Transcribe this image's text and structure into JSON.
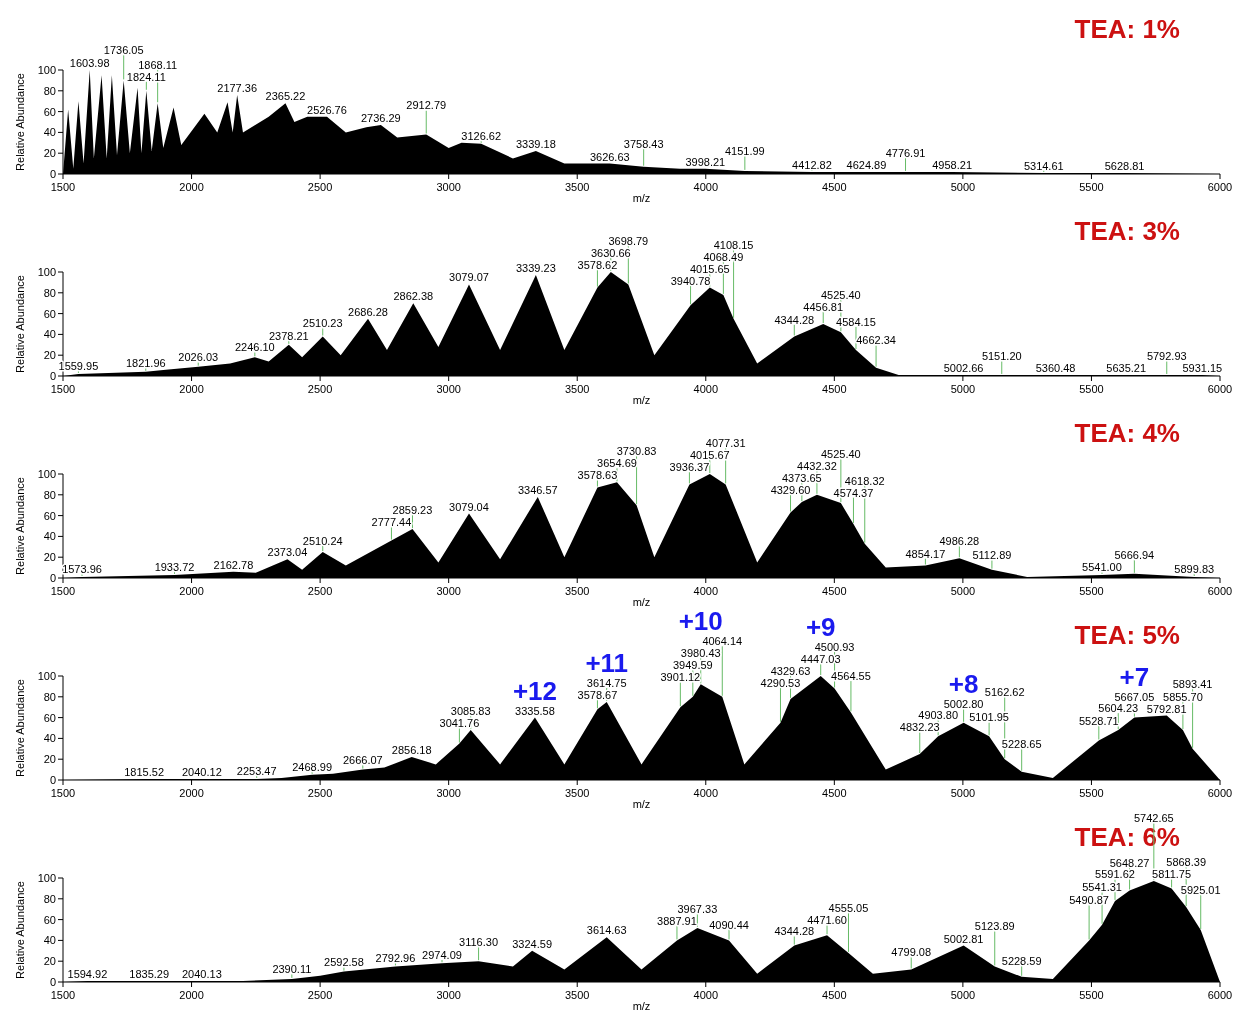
{
  "chart_data": [
    {
      "type": "area",
      "title": "TEA: 1%",
      "xlabel": "m/z",
      "ylabel": "Relative Abundance",
      "color": "#000000",
      "xlim": [
        1500,
        6000
      ],
      "xticks": [
        1500,
        2000,
        2500,
        3000,
        3500,
        4000,
        4500,
        5000,
        5500,
        6000
      ],
      "ylim": [
        0,
        100
      ],
      "yticks": [
        0,
        20,
        40,
        60,
        80,
        100
      ],
      "x": [
        1500,
        1520,
        1540,
        1560,
        1580,
        1603.98,
        1620,
        1650,
        1670,
        1690,
        1710,
        1736.05,
        1760,
        1790,
        1805,
        1824.11,
        1845,
        1868.11,
        1890,
        1930,
        1960,
        2050,
        2100,
        2140,
        2160,
        2177.36,
        2200,
        2300,
        2365.22,
        2400,
        2450,
        2526.76,
        2600,
        2680,
        2736.29,
        2800,
        2912.79,
        3000,
        3050,
        3126.62,
        3250,
        3339.18,
        3450,
        3626.63,
        3758.43,
        3900,
        3998.21,
        4151.99,
        4412.82,
        4624.89,
        4776.91,
        4958.21,
        5314.61,
        5628.81,
        6000
      ],
      "values": [
        0,
        62,
        5,
        70,
        10,
        100,
        15,
        95,
        15,
        95,
        18,
        90,
        20,
        83,
        20,
        80,
        22,
        68,
        25,
        64,
        28,
        58,
        40,
        69,
        40,
        76,
        40,
        55,
        68,
        50,
        55,
        55,
        40,
        45,
        47,
        35,
        38,
        25,
        30,
        29,
        15,
        22,
        10,
        10,
        7,
        5,
        5,
        3,
        2,
        2,
        2,
        2,
        1,
        1,
        0
      ],
      "annotations": [
        {
          "text": "1603.98",
          "x": 1603.98,
          "y": 100
        },
        {
          "text": "1736.05",
          "x": 1736.05,
          "y": 90
        },
        {
          "text": "1824.11",
          "x": 1824.11,
          "y": 80
        },
        {
          "text": "1868.11",
          "x": 1868.11,
          "y": 68
        },
        {
          "text": "2177.36",
          "x": 2177.36,
          "y": 76
        },
        {
          "text": "2365.22",
          "x": 2365.22,
          "y": 68
        },
        {
          "text": "2526.76",
          "x": 2526.76,
          "y": 55
        },
        {
          "text": "2736.29",
          "x": 2736.29,
          "y": 47
        },
        {
          "text": "2912.79",
          "x": 2912.79,
          "y": 38
        },
        {
          "text": "3126.62",
          "x": 3126.62,
          "y": 29
        },
        {
          "text": "3339.18",
          "x": 3339.18,
          "y": 22
        },
        {
          "text": "3626.63",
          "x": 3626.63,
          "y": 10
        },
        {
          "text": "3758.43",
          "x": 3758.43,
          "y": 7
        },
        {
          "text": "3998.21",
          "x": 3998.21,
          "y": 5
        },
        {
          "text": "4151.99",
          "x": 4151.99,
          "y": 3
        },
        {
          "text": "4412.82",
          "x": 4412.82,
          "y": 2
        },
        {
          "text": "4624.89",
          "x": 4624.89,
          "y": 2
        },
        {
          "text": "4776.91",
          "x": 4776.91,
          "y": 2
        },
        {
          "text": "4958.21",
          "x": 4958.21,
          "y": 2
        },
        {
          "text": "5314.61",
          "x": 5314.61,
          "y": 1
        },
        {
          "text": "5628.81",
          "x": 5628.81,
          "y": 1
        }
      ]
    },
    {
      "type": "area",
      "title": "TEA: 3%",
      "xlabel": "m/z",
      "ylabel": "Relative Abundance",
      "color": "#000000",
      "xlim": [
        1500,
        6000
      ],
      "xticks": [
        1500,
        2000,
        2500,
        3000,
        3500,
        4000,
        4500,
        5000,
        5500,
        6000
      ],
      "ylim": [
        0,
        100
      ],
      "yticks": [
        0,
        20,
        40,
        60,
        80,
        100
      ],
      "x": [
        1500,
        1559.95,
        1821.96,
        1900,
        2026.03,
        2150,
        2246.1,
        2300,
        2378.21,
        2430,
        2510.23,
        2580,
        2686.28,
        2760,
        2862.38,
        2960,
        3079.07,
        3200,
        3339.23,
        3450,
        3578.62,
        3630.66,
        3698.79,
        3800,
        3940.78,
        4015.65,
        4068.49,
        4108.15,
        4200,
        4344.28,
        4456.81,
        4525.4,
        4584.15,
        4662.34,
        4750,
        5002.66,
        5151.2,
        5360.48,
        5635.21,
        5792.93,
        5931.15,
        6000
      ],
      "values": [
        0,
        2,
        4,
        6,
        9,
        12,
        18,
        14,
        30,
        18,
        38,
        20,
        55,
        25,
        70,
        28,
        88,
        25,
        97,
        25,
        85,
        100,
        88,
        20,
        68,
        85,
        78,
        55,
        12,
        38,
        50,
        42,
        25,
        8,
        1,
        1,
        1,
        1,
        1,
        1,
        1,
        0
      ],
      "annotations": [
        {
          "text": "1559.95",
          "x": 1559.95,
          "y": 2
        },
        {
          "text": "1821.96",
          "x": 1821.96,
          "y": 4
        },
        {
          "text": "2026.03",
          "x": 2026.03,
          "y": 9
        },
        {
          "text": "2246.10",
          "x": 2246.1,
          "y": 18
        },
        {
          "text": "2378.21",
          "x": 2378.21,
          "y": 30
        },
        {
          "text": "2510.23",
          "x": 2510.23,
          "y": 38
        },
        {
          "text": "2686.28",
          "x": 2686.28,
          "y": 55
        },
        {
          "text": "2862.38",
          "x": 2862.38,
          "y": 70
        },
        {
          "text": "3079.07",
          "x": 3079.07,
          "y": 88
        },
        {
          "text": "3339.23",
          "x": 3339.23,
          "y": 97
        },
        {
          "text": "3578.62",
          "x": 3578.62,
          "y": 85
        },
        {
          "text": "3630.66",
          "x": 3630.66,
          "y": 100
        },
        {
          "text": "3698.79",
          "x": 3698.79,
          "y": 88
        },
        {
          "text": "3940.78",
          "x": 3940.78,
          "y": 68
        },
        {
          "text": "4015.65",
          "x": 4015.65,
          "y": 85
        },
        {
          "text": "4068.49",
          "x": 4068.49,
          "y": 78
        },
        {
          "text": "4108.15",
          "x": 4108.15,
          "y": 55
        },
        {
          "text": "4344.28",
          "x": 4344.28,
          "y": 38
        },
        {
          "text": "4456.81",
          "x": 4456.81,
          "y": 50
        },
        {
          "text": "4525.40",
          "x": 4525.4,
          "y": 42
        },
        {
          "text": "4584.15",
          "x": 4584.15,
          "y": 25
        },
        {
          "text": "4662.34",
          "x": 4662.34,
          "y": 8
        },
        {
          "text": "5002.66",
          "x": 5002.66,
          "y": 1
        },
        {
          "text": "5151.20",
          "x": 5151.2,
          "y": 1
        },
        {
          "text": "5360.48",
          "x": 5360.48,
          "y": 1
        },
        {
          "text": "5635.21",
          "x": 5635.21,
          "y": 1
        },
        {
          "text": "5792.93",
          "x": 5792.93,
          "y": 1
        },
        {
          "text": "5931.15",
          "x": 5931.15,
          "y": 1
        }
      ]
    },
    {
      "type": "area",
      "title": "TEA: 4%",
      "xlabel": "m/z",
      "ylabel": "Relative Abundance",
      "color": "#000000",
      "xlim": [
        1500,
        6000
      ],
      "xticks": [
        1500,
        2000,
        2500,
        3000,
        3500,
        4000,
        4500,
        5000,
        5500,
        6000
      ],
      "ylim": [
        0,
        100
      ],
      "yticks": [
        0,
        20,
        40,
        60,
        80,
        100
      ],
      "x": [
        1500,
        1573.96,
        1933.72,
        2162.78,
        2250,
        2373.04,
        2430,
        2510.24,
        2600,
        2777.44,
        2859.23,
        2960,
        3079.04,
        3200,
        3346.57,
        3450,
        3578.63,
        3654.69,
        3730.83,
        3800,
        3936.37,
        4015.67,
        4077.31,
        4200,
        4329.6,
        4373.65,
        4432.32,
        4525.4,
        4574.37,
        4618.32,
        4700,
        4854.17,
        4986.28,
        5112.89,
        5250,
        5541.0,
        5666.94,
        5899.83,
        6000
      ],
      "values": [
        0,
        1,
        3,
        6,
        5,
        18,
        8,
        25,
        12,
        36,
        47,
        15,
        62,
        18,
        78,
        20,
        87,
        92,
        70,
        20,
        90,
        100,
        90,
        15,
        63,
        73,
        80,
        72,
        52,
        33,
        10,
        12,
        19,
        8,
        1,
        3,
        4,
        1,
        0
      ],
      "annotations": [
        {
          "text": "1573.96",
          "x": 1573.96,
          "y": 1
        },
        {
          "text": "1933.72",
          "x": 1933.72,
          "y": 3
        },
        {
          "text": "2162.78",
          "x": 2162.78,
          "y": 6
        },
        {
          "text": "2373.04",
          "x": 2373.04,
          "y": 18
        },
        {
          "text": "2510.24",
          "x": 2510.24,
          "y": 25
        },
        {
          "text": "2777.44",
          "x": 2777.44,
          "y": 36
        },
        {
          "text": "2859.23",
          "x": 2859.23,
          "y": 47
        },
        {
          "text": "3079.04",
          "x": 3079.04,
          "y": 62
        },
        {
          "text": "3346.57",
          "x": 3346.57,
          "y": 78
        },
        {
          "text": "3578.63",
          "x": 3578.63,
          "y": 87
        },
        {
          "text": "3654.69",
          "x": 3654.69,
          "y": 92
        },
        {
          "text": "3730.83",
          "x": 3730.83,
          "y": 70
        },
        {
          "text": "3936.37",
          "x": 3936.37,
          "y": 90
        },
        {
          "text": "4015.67",
          "x": 4015.67,
          "y": 100
        },
        {
          "text": "4077.31",
          "x": 4077.31,
          "y": 90
        },
        {
          "text": "4329.60",
          "x": 4329.6,
          "y": 63
        },
        {
          "text": "4373.65",
          "x": 4373.65,
          "y": 73
        },
        {
          "text": "4432.32",
          "x": 4432.32,
          "y": 80
        },
        {
          "text": "4525.40",
          "x": 4525.4,
          "y": 72
        },
        {
          "text": "4574.37",
          "x": 4574.37,
          "y": 52
        },
        {
          "text": "4618.32",
          "x": 4618.32,
          "y": 33
        },
        {
          "text": "4854.17",
          "x": 4854.17,
          "y": 12
        },
        {
          "text": "4986.28",
          "x": 4986.28,
          "y": 19
        },
        {
          "text": "5112.89",
          "x": 5112.89,
          "y": 8
        },
        {
          "text": "5541.00",
          "x": 5541.0,
          "y": 3
        },
        {
          "text": "5666.94",
          "x": 5666.94,
          "y": 4
        },
        {
          "text": "5899.83",
          "x": 5899.83,
          "y": 1
        }
      ]
    },
    {
      "type": "area",
      "title": "TEA: 5%",
      "xlabel": "m/z",
      "ylabel": "Relative Abundance",
      "color": "#000000",
      "xlim": [
        1500,
        6000
      ],
      "xticks": [
        1500,
        2000,
        2500,
        3000,
        3500,
        4000,
        4500,
        5000,
        5500,
        6000
      ],
      "ylim": [
        0,
        100
      ],
      "yticks": [
        0,
        20,
        40,
        60,
        80,
        100
      ],
      "x": [
        1500,
        1815.52,
        2040.12,
        2253.47,
        2350,
        2468.99,
        2550,
        2666.07,
        2750,
        2856.18,
        2950,
        3041.76,
        3085.83,
        3200,
        3335.58,
        3450,
        3578.67,
        3614.75,
        3750,
        3901.12,
        3949.59,
        3980.43,
        4064.14,
        4150,
        4290.53,
        4329.63,
        4447.03,
        4500.93,
        4564.55,
        4700,
        4832.23,
        4903.8,
        5002.8,
        5101.95,
        5162.62,
        5228.65,
        5350,
        5528.71,
        5604.23,
        5667.05,
        5792.81,
        5855.7,
        5893.41,
        6000
      ],
      "values": [
        0,
        1,
        1,
        1,
        2,
        5,
        6,
        10,
        12,
        22,
        15,
        35,
        48,
        15,
        60,
        15,
        68,
        75,
        15,
        70,
        80,
        92,
        80,
        15,
        55,
        78,
        100,
        88,
        65,
        10,
        25,
        42,
        55,
        42,
        20,
        8,
        2,
        38,
        48,
        60,
        62,
        48,
        30,
        0
      ],
      "annotations": [
        {
          "text": "1815.52",
          "x": 1815.52,
          "y": 1
        },
        {
          "text": "2040.12",
          "x": 2040.12,
          "y": 1
        },
        {
          "text": "2253.47",
          "x": 2253.47,
          "y": 1
        },
        {
          "text": "2468.99",
          "x": 2468.99,
          "y": 5
        },
        {
          "text": "2666.07",
          "x": 2666.07,
          "y": 10
        },
        {
          "text": "2856.18",
          "x": 2856.18,
          "y": 22
        },
        {
          "text": "3041.76",
          "x": 3041.76,
          "y": 35
        },
        {
          "text": "3085.83",
          "x": 3085.83,
          "y": 48
        },
        {
          "text": "3335.58",
          "x": 3335.58,
          "y": 60
        },
        {
          "text": "3578.67",
          "x": 3578.67,
          "y": 68
        },
        {
          "text": "3614.75",
          "x": 3614.75,
          "y": 75
        },
        {
          "text": "3901.12",
          "x": 3901.12,
          "y": 70
        },
        {
          "text": "3949.59",
          "x": 3949.59,
          "y": 80
        },
        {
          "text": "3980.43",
          "x": 3980.43,
          "y": 92
        },
        {
          "text": "4064.14",
          "x": 4064.14,
          "y": 80
        },
        {
          "text": "4290.53",
          "x": 4290.53,
          "y": 55
        },
        {
          "text": "4329.63",
          "x": 4329.63,
          "y": 78
        },
        {
          "text": "4447.03",
          "x": 4447.03,
          "y": 100
        },
        {
          "text": "4500.93",
          "x": 4500.93,
          "y": 88
        },
        {
          "text": "4564.55",
          "x": 4564.55,
          "y": 65
        },
        {
          "text": "4832.23",
          "x": 4832.23,
          "y": 25
        },
        {
          "text": "4903.80",
          "x": 4903.8,
          "y": 42
        },
        {
          "text": "5002.80",
          "x": 5002.8,
          "y": 55
        },
        {
          "text": "5101.95",
          "x": 5101.95,
          "y": 42
        },
        {
          "text": "5162.62",
          "x": 5162.62,
          "y": 20
        },
        {
          "text": "5228.65",
          "x": 5228.65,
          "y": 8
        },
        {
          "text": "5528.71",
          "x": 5528.71,
          "y": 38
        },
        {
          "text": "5604.23",
          "x": 5604.23,
          "y": 48
        },
        {
          "text": "5667.05",
          "x": 5667.05,
          "y": 60
        },
        {
          "text": "5792.81",
          "x": 5792.81,
          "y": 62
        },
        {
          "text": "5855.70",
          "x": 5855.7,
          "y": 48
        },
        {
          "text": "5893.41",
          "x": 5893.41,
          "y": 30
        },
        {
          "text": "+12",
          "x": 3335.58,
          "y": 60
        },
        {
          "text": "+11",
          "x": 3614.75,
          "y": 75
        },
        {
          "text": "+10",
          "x": 3980.43,
          "y": 92
        },
        {
          "text": "+9",
          "x": 4447.03,
          "y": 100
        },
        {
          "text": "+8",
          "x": 5002.8,
          "y": 55
        },
        {
          "text": "+7",
          "x": 5667.05,
          "y": 60
        }
      ]
    },
    {
      "type": "area",
      "title": "TEA: 6%",
      "xlabel": "m/z",
      "ylabel": "Relative Abundance",
      "color": "#000000",
      "xlim": [
        1500,
        6000
      ],
      "xticks": [
        1500,
        2000,
        2500,
        3000,
        3500,
        4000,
        4500,
        5000,
        5500,
        6000
      ],
      "ylim": [
        0,
        100
      ],
      "yticks": [
        0,
        20,
        40,
        60,
        80,
        100
      ],
      "x": [
        1500,
        1594.92,
        1835.29,
        2040.13,
        2200,
        2390.11,
        2500,
        2592.58,
        2792.96,
        2974.09,
        3116.3,
        3250,
        3324.59,
        3450,
        3614.63,
        3750,
        3887.91,
        3967.33,
        4090.44,
        4200,
        4344.28,
        4471.6,
        4555.05,
        4650,
        4799.08,
        5002.81,
        5123.89,
        5228.59,
        5350,
        5490.87,
        5541.31,
        5591.62,
        5648.27,
        5742.65,
        5811.75,
        5868.39,
        5925.01,
        6000
      ],
      "values": [
        0,
        1,
        1,
        1,
        1,
        3,
        6,
        10,
        15,
        18,
        20,
        15,
        30,
        12,
        43,
        12,
        40,
        52,
        40,
        8,
        35,
        45,
        28,
        8,
        12,
        35,
        15,
        5,
        3,
        40,
        55,
        78,
        88,
        97,
        90,
        72,
        50,
        0
      ],
      "annotations": [
        {
          "text": "1594.92",
          "x": 1594.92,
          "y": 1
        },
        {
          "text": "1835.29",
          "x": 1835.29,
          "y": 1
        },
        {
          "text": "2040.13",
          "x": 2040.13,
          "y": 1
        },
        {
          "text": "2390.11",
          "x": 2390.11,
          "y": 3
        },
        {
          "text": "2592.58",
          "x": 2592.58,
          "y": 10
        },
        {
          "text": "2792.96",
          "x": 2792.96,
          "y": 15
        },
        {
          "text": "2974.09",
          "x": 2974.09,
          "y": 18
        },
        {
          "text": "3116.30",
          "x": 3116.3,
          "y": 20
        },
        {
          "text": "3324.59",
          "x": 3324.59,
          "y": 30
        },
        {
          "text": "3614.63",
          "x": 3614.63,
          "y": 43
        },
        {
          "text": "3887.91",
          "x": 3887.91,
          "y": 40
        },
        {
          "text": "3967.33",
          "x": 3967.33,
          "y": 52
        },
        {
          "text": "4090.44",
          "x": 4090.44,
          "y": 40
        },
        {
          "text": "4344.28",
          "x": 4344.28,
          "y": 35
        },
        {
          "text": "4471.60",
          "x": 4471.6,
          "y": 45
        },
        {
          "text": "4555.05",
          "x": 4555.05,
          "y": 28
        },
        {
          "text": "4799.08",
          "x": 4799.08,
          "y": 12
        },
        {
          "text": "5002.81",
          "x": 5002.81,
          "y": 35
        },
        {
          "text": "5123.89",
          "x": 5123.89,
          "y": 15
        },
        {
          "text": "5228.59",
          "x": 5228.59,
          "y": 5
        },
        {
          "text": "5490.87",
          "x": 5490.87,
          "y": 40
        },
        {
          "text": "5541.31",
          "x": 5541.31,
          "y": 55
        },
        {
          "text": "5591.62",
          "x": 5591.62,
          "y": 78
        },
        {
          "text": "5648.27",
          "x": 5648.27,
          "y": 88
        },
        {
          "text": "5742.65",
          "x": 5742.65,
          "y": 97
        },
        {
          "text": "5811.75",
          "x": 5811.75,
          "y": 90
        },
        {
          "text": "5868.39",
          "x": 5868.39,
          "y": 72
        },
        {
          "text": "5925.01",
          "x": 5925.01,
          "y": 50
        }
      ]
    }
  ]
}
